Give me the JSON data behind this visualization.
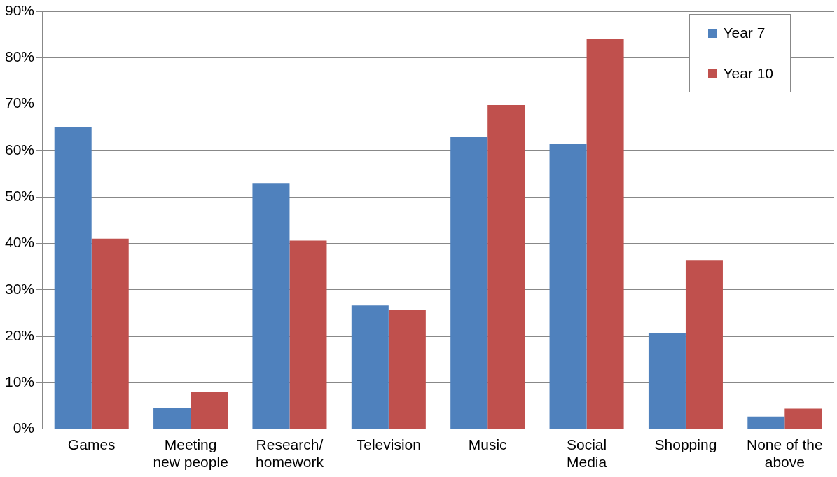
{
  "chart_data": {
    "type": "bar",
    "categories": [
      "Games",
      "Meeting\nnew people",
      "Research/\nhomework",
      "Television",
      "Music",
      "Social\nMedia",
      "Shopping",
      "None of the\nabove"
    ],
    "series": [
      {
        "name": "Year 7",
        "color": "#4f81bd",
        "values": [
          65,
          4.5,
          53,
          26.6,
          62.9,
          61.5,
          20.6,
          2.7
        ]
      },
      {
        "name": "Year 10",
        "color": "#c0504d",
        "values": [
          41,
          8,
          40.6,
          25.7,
          69.8,
          84,
          36.4,
          4.4
        ]
      }
    ],
    "ylim": [
      0,
      90
    ],
    "yticks": [
      {
        "value": 0,
        "label": "0%"
      },
      {
        "value": 10,
        "label": "10%"
      },
      {
        "value": 20,
        "label": "20%"
      },
      {
        "value": 30,
        "label": "30%"
      },
      {
        "value": 40,
        "label": "40%"
      },
      {
        "value": 50,
        "label": "50%"
      },
      {
        "value": 60,
        "label": "60%"
      },
      {
        "value": 70,
        "label": "70%"
      },
      {
        "value": 80,
        "label": "80%"
      },
      {
        "value": 90,
        "label": "90%"
      }
    ],
    "grid": "y",
    "legend": "top right"
  }
}
